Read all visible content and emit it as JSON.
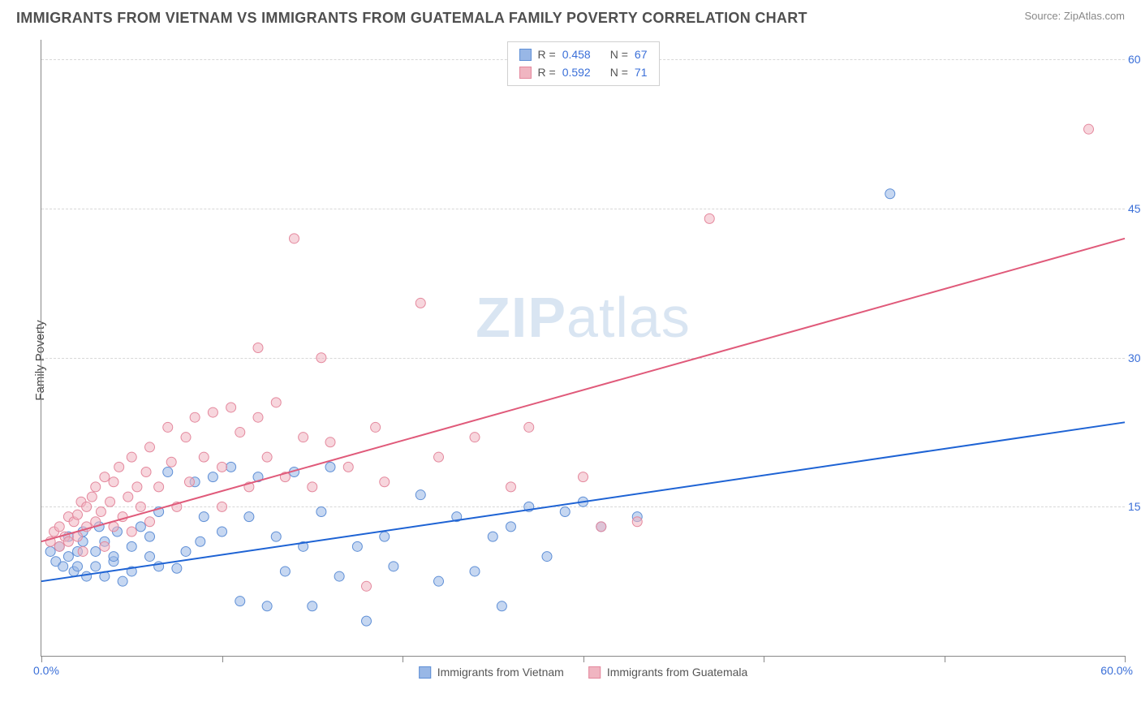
{
  "header": {
    "title": "IMMIGRANTS FROM VIETNAM VS IMMIGRANTS FROM GUATEMALA FAMILY POVERTY CORRELATION CHART",
    "source": "Source: ZipAtlas.com"
  },
  "chart": {
    "type": "scatter",
    "watermark": {
      "bold": "ZIP",
      "rest": "atlas"
    },
    "ylabel": "Family Poverty",
    "xlim": [
      0,
      60
    ],
    "ylim": [
      0,
      62
    ],
    "xtick_positions": [
      0,
      10,
      20,
      30,
      40,
      50,
      60
    ],
    "xtick_labels_shown": {
      "min": "0.0%",
      "max": "60.0%"
    },
    "ytick_positions": [
      15,
      30,
      45,
      60
    ],
    "ytick_labels": [
      "15.0%",
      "30.0%",
      "45.0%",
      "60.0%"
    ],
    "background_color": "#ffffff",
    "grid_color": "#d8d8d8",
    "axis_color": "#888888",
    "marker_radius": 6,
    "marker_opacity": 0.55,
    "line_width": 2,
    "series": [
      {
        "id": "vietnam",
        "label": "Immigrants from Vietnam",
        "color_fill": "#98b7e6",
        "color_stroke": "#5f8fd6",
        "line_color": "#1e63d4",
        "R": "0.458",
        "N": "67",
        "trend": {
          "x1": 0,
          "y1": 7.5,
          "x2": 60,
          "y2": 23.5
        },
        "points": [
          [
            0.5,
            10.5
          ],
          [
            0.8,
            9.5
          ],
          [
            1,
            11
          ],
          [
            1.2,
            9
          ],
          [
            1.5,
            10
          ],
          [
            1.5,
            12
          ],
          [
            1.8,
            8.5
          ],
          [
            2,
            9
          ],
          [
            2,
            10.5
          ],
          [
            2.3,
            11.5
          ],
          [
            2.3,
            12.5
          ],
          [
            2.5,
            8
          ],
          [
            3,
            9
          ],
          [
            3,
            10.5
          ],
          [
            3.2,
            13
          ],
          [
            3.5,
            8
          ],
          [
            3.5,
            11.5
          ],
          [
            4,
            9.5
          ],
          [
            4,
            10
          ],
          [
            4.2,
            12.5
          ],
          [
            4.5,
            7.5
          ],
          [
            5,
            11
          ],
          [
            5,
            8.5
          ],
          [
            5.5,
            13
          ],
          [
            6,
            10
          ],
          [
            6,
            12
          ],
          [
            6.5,
            9
          ],
          [
            6.5,
            14.5
          ],
          [
            7,
            18.5
          ],
          [
            7.5,
            8.8
          ],
          [
            8,
            10.5
          ],
          [
            8.5,
            17.5
          ],
          [
            8.8,
            11.5
          ],
          [
            9,
            14
          ],
          [
            9.5,
            18
          ],
          [
            10,
            12.5
          ],
          [
            10.5,
            19
          ],
          [
            11,
            5.5
          ],
          [
            11.5,
            14
          ],
          [
            12,
            18
          ],
          [
            12.5,
            5
          ],
          [
            13,
            12
          ],
          [
            13.5,
            8.5
          ],
          [
            14,
            18.5
          ],
          [
            14.5,
            11
          ],
          [
            15,
            5
          ],
          [
            15.5,
            14.5
          ],
          [
            16,
            19
          ],
          [
            16.5,
            8
          ],
          [
            17.5,
            11
          ],
          [
            18,
            3.5
          ],
          [
            19,
            12
          ],
          [
            19.5,
            9
          ],
          [
            21,
            16.2
          ],
          [
            22,
            7.5
          ],
          [
            23,
            14
          ],
          [
            24,
            8.5
          ],
          [
            25,
            12
          ],
          [
            25.5,
            5
          ],
          [
            26,
            13
          ],
          [
            27,
            15
          ],
          [
            28,
            10
          ],
          [
            29,
            14.5
          ],
          [
            30,
            15.5
          ],
          [
            31,
            13
          ],
          [
            33,
            14
          ],
          [
            47,
            46.5
          ]
        ]
      },
      {
        "id": "guatemala",
        "label": "Immigrants from Guatemala",
        "color_fill": "#f0b5c1",
        "color_stroke": "#e4889d",
        "line_color": "#e05a7a",
        "R": "0.592",
        "N": "71",
        "trend": {
          "x1": 0,
          "y1": 11.5,
          "x2": 60,
          "y2": 42
        },
        "points": [
          [
            0.5,
            11.5
          ],
          [
            0.7,
            12.5
          ],
          [
            1,
            11
          ],
          [
            1,
            13
          ],
          [
            1.3,
            12
          ],
          [
            1.5,
            14
          ],
          [
            1.5,
            11.5
          ],
          [
            1.8,
            13.5
          ],
          [
            2,
            12
          ],
          [
            2,
            14.2
          ],
          [
            2.2,
            15.5
          ],
          [
            2.3,
            10.5
          ],
          [
            2.5,
            13
          ],
          [
            2.5,
            15
          ],
          [
            2.8,
            16
          ],
          [
            3,
            13.5
          ],
          [
            3,
            17
          ],
          [
            3.3,
            14.5
          ],
          [
            3.5,
            11
          ],
          [
            3.5,
            18
          ],
          [
            3.8,
            15.5
          ],
          [
            4,
            13
          ],
          [
            4,
            17.5
          ],
          [
            4.3,
            19
          ],
          [
            4.5,
            14
          ],
          [
            4.8,
            16
          ],
          [
            5,
            12.5
          ],
          [
            5,
            20
          ],
          [
            5.3,
            17
          ],
          [
            5.5,
            15
          ],
          [
            5.8,
            18.5
          ],
          [
            6,
            13.5
          ],
          [
            6,
            21
          ],
          [
            6.5,
            17
          ],
          [
            7,
            23
          ],
          [
            7.2,
            19.5
          ],
          [
            7.5,
            15
          ],
          [
            8,
            22
          ],
          [
            8.2,
            17.5
          ],
          [
            8.5,
            24
          ],
          [
            9,
            20
          ],
          [
            9.5,
            24.5
          ],
          [
            10,
            15
          ],
          [
            10,
            19
          ],
          [
            10.5,
            25
          ],
          [
            11,
            22.5
          ],
          [
            11.5,
            17
          ],
          [
            12,
            24
          ],
          [
            12,
            31
          ],
          [
            12.5,
            20
          ],
          [
            13,
            25.5
          ],
          [
            13.5,
            18
          ],
          [
            14,
            42
          ],
          [
            14.5,
            22
          ],
          [
            15,
            17
          ],
          [
            15.5,
            30
          ],
          [
            16,
            21.5
          ],
          [
            17,
            19
          ],
          [
            18,
            7
          ],
          [
            18.5,
            23
          ],
          [
            19,
            17.5
          ],
          [
            21,
            35.5
          ],
          [
            22,
            20
          ],
          [
            24,
            22
          ],
          [
            26,
            17
          ],
          [
            27,
            23
          ],
          [
            30,
            18
          ],
          [
            31,
            13
          ],
          [
            33,
            13.5
          ],
          [
            37,
            44
          ],
          [
            58,
            53
          ]
        ]
      }
    ],
    "legend_top": [
      {
        "swatch_fill": "#98b7e6",
        "swatch_stroke": "#5f8fd6",
        "r_label": "R =",
        "r_val": "0.458",
        "n_label": "N =",
        "n_val": "67"
      },
      {
        "swatch_fill": "#f0b5c1",
        "swatch_stroke": "#e4889d",
        "r_label": "R =",
        "r_val": "0.592",
        "n_label": "N =",
        "n_val": "71"
      }
    ]
  }
}
